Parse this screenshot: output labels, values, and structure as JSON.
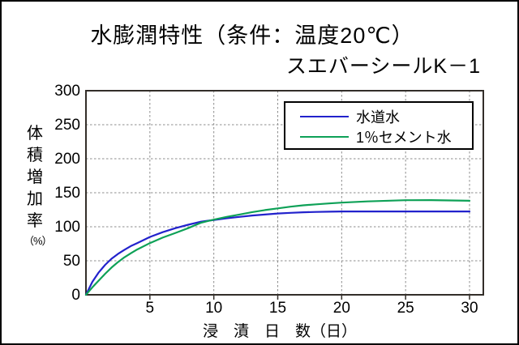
{
  "title": "水膨潤特性（条件：温度20℃）",
  "subtitle": "スエバーシールK－1",
  "colors": {
    "tap_water_line": "#2222CC",
    "cement_water_line": "#0EA157",
    "gridline": "#8C8C8C",
    "axis": "#332E29",
    "background": "#FFFFFF",
    "border": "#000000"
  },
  "chart_data": {
    "type": "line",
    "title": "水膨潤特性（条件：温度20℃）",
    "subtitle": "スエバーシールK－1",
    "xlabel": "浸　漬　日　数（日）",
    "ylabel": "体積増加率（%）",
    "ylabel_chars": [
      "体",
      "積",
      "増",
      "加",
      "率"
    ],
    "ylabel_unit": "（%）",
    "xlim": [
      0,
      31
    ],
    "ylim": [
      0,
      300
    ],
    "xticks": [
      5,
      10,
      15,
      20,
      25,
      30
    ],
    "yticks": [
      0,
      50,
      100,
      150,
      200,
      250,
      300
    ],
    "grid": true,
    "grid_style": "dashed",
    "legend_position": "top-right",
    "series": [
      {
        "name": "水道水",
        "color": "#2222CC",
        "x": [
          0,
          0.5,
          1,
          1.5,
          2,
          2.5,
          3,
          3.5,
          4,
          5,
          6,
          7,
          8,
          9,
          10,
          11,
          12,
          13,
          14,
          15,
          16,
          17,
          18,
          19,
          20,
          22,
          25,
          30
        ],
        "y": [
          0,
          19,
          33,
          44,
          53,
          60,
          66,
          71.5,
          76,
          85,
          92,
          98,
          103,
          107.5,
          110,
          112.5,
          114.5,
          116.5,
          118,
          119.5,
          120.5,
          121.3,
          121.8,
          122.2,
          122.5,
          122.5,
          122.5,
          122.5
        ]
      },
      {
        "name": "1％セメント水",
        "color": "#0EA157",
        "x": [
          0,
          0.5,
          1,
          1.5,
          2,
          2.5,
          3,
          3.5,
          4,
          5,
          6,
          7,
          8,
          9,
          10,
          11,
          12,
          13,
          14,
          15,
          16,
          17,
          18,
          19,
          20,
          22,
          25,
          27,
          30
        ],
        "y": [
          0,
          11,
          21,
          31,
          40,
          48,
          55,
          61,
          66.5,
          76,
          84,
          91,
          98,
          106,
          110.5,
          114.5,
          118,
          121.5,
          124.5,
          127,
          129.5,
          131.5,
          133,
          134.3,
          135.5,
          137.3,
          139,
          139.2,
          138.2
        ]
      }
    ]
  }
}
